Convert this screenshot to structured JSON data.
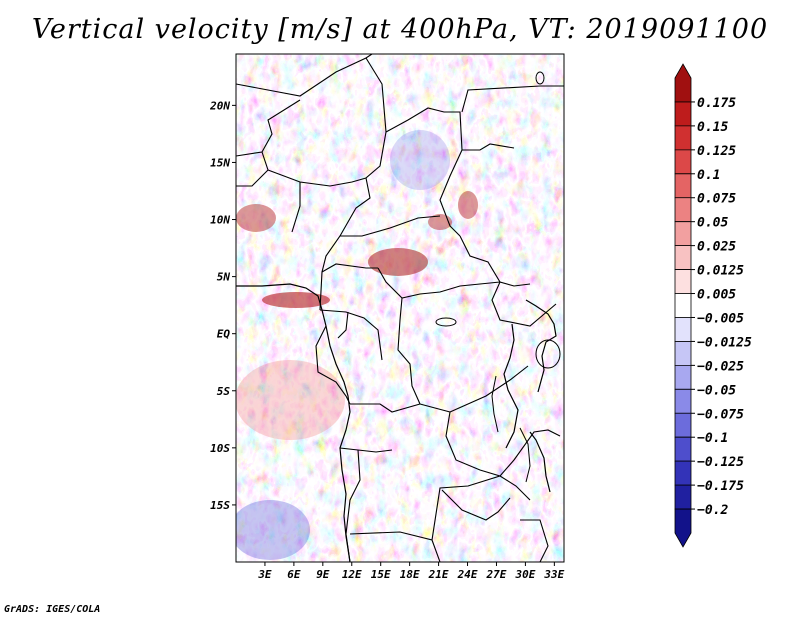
{
  "title": "Vertical velocity [m/s] at 400hPa, VT: 2019091100",
  "credit": "GrADS: IGES/COLA",
  "map": {
    "lon_range": [
      0,
      34
    ],
    "lat_range": [
      -20,
      24.5
    ],
    "lat_ticks": [
      {
        "value": 20,
        "label": "20N"
      },
      {
        "value": 15,
        "label": "15N"
      },
      {
        "value": 10,
        "label": "10N"
      },
      {
        "value": 5,
        "label": "5N"
      },
      {
        "value": 0,
        "label": "EQ"
      },
      {
        "value": -5,
        "label": "5S"
      },
      {
        "value": -10,
        "label": "10S"
      },
      {
        "value": -15,
        "label": "15S"
      }
    ],
    "lon_ticks": [
      {
        "value": 3,
        "label": "3E"
      },
      {
        "value": 6,
        "label": "6E"
      },
      {
        "value": 9,
        "label": "9E"
      },
      {
        "value": 12,
        "label": "12E"
      },
      {
        "value": 15,
        "label": "15E"
      },
      {
        "value": 18,
        "label": "18E"
      },
      {
        "value": 21,
        "label": "21E"
      },
      {
        "value": 24,
        "label": "24E"
      },
      {
        "value": 27,
        "label": "27E"
      },
      {
        "value": 30,
        "label": "30E"
      },
      {
        "value": 33,
        "label": "33E"
      }
    ]
  },
  "colorbar": {
    "labels": [
      "0.175",
      "0.15",
      "0.125",
      "0.1",
      "0.075",
      "0.05",
      "0.025",
      "0.0125",
      "0.005",
      "−0.005",
      "−0.0125",
      "−0.025",
      "−0.05",
      "−0.075",
      "−0.1",
      "−0.125",
      "−0.175",
      "−0.2"
    ],
    "colors": [
      "#a01010",
      "#be1c1c",
      "#d03030",
      "#dc4848",
      "#e46464",
      "#ec8282",
      "#f2a0a0",
      "#f8c2c2",
      "#fde0e0",
      "#ffffff",
      "#e2e2fc",
      "#c6c6f6",
      "#a8a8f0",
      "#8a8ae8",
      "#6c6cdc",
      "#4e4ecc",
      "#3333b8",
      "#2020a0",
      "#12128a"
    ]
  }
}
